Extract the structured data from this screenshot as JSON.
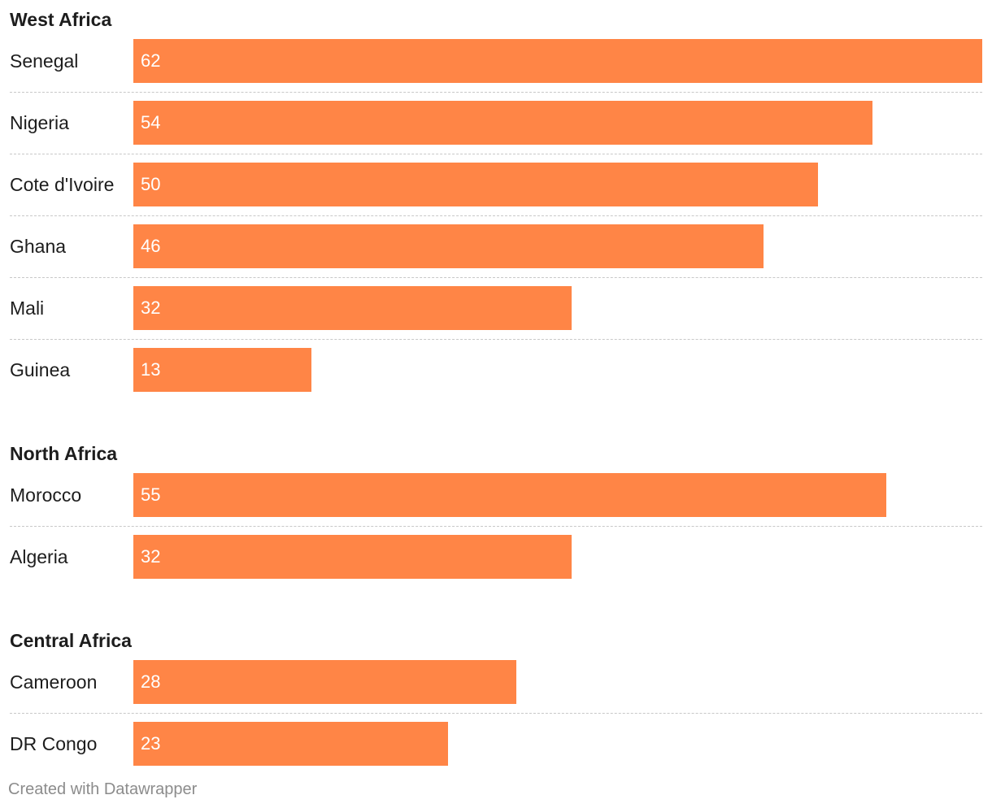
{
  "chart_data": {
    "type": "bar",
    "orientation": "horizontal",
    "xlim": [
      0,
      62
    ],
    "bar_color": "#ff8546",
    "value_label_color": "#ffffff",
    "groups": [
      {
        "title": "West Africa",
        "categories": [
          "Senegal",
          "Nigeria",
          "Cote d'Ivoire",
          "Ghana",
          "Mali",
          "Guinea"
        ],
        "values": [
          62,
          54,
          50,
          46,
          32,
          13
        ]
      },
      {
        "title": "North Africa",
        "categories": [
          "Morocco",
          "Algeria"
        ],
        "values": [
          55,
          32
        ]
      },
      {
        "title": "Central Africa",
        "categories": [
          "Cameroon",
          "DR Congo"
        ],
        "values": [
          28,
          23
        ]
      }
    ]
  },
  "footer": {
    "credit": "Created with Datawrapper"
  }
}
